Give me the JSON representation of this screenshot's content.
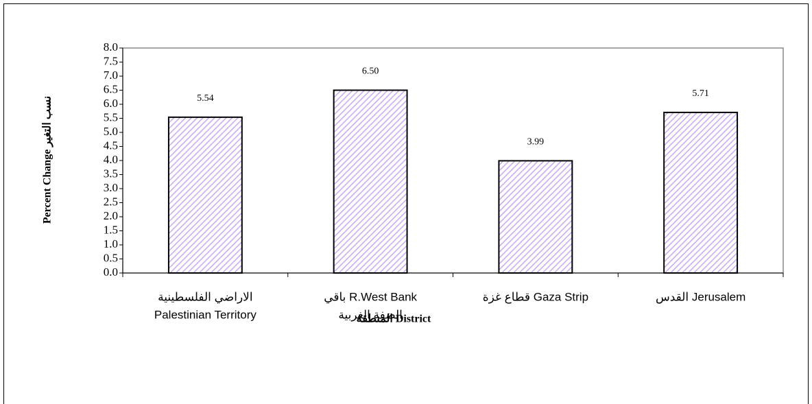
{
  "chart_data": {
    "type": "bar",
    "categories": [
      [
        "الاراضي الفلسطينية",
        "Palestinian Territory"
      ],
      [
        "باقي R.West Bank",
        "الضفة الغربية"
      ],
      [
        "قطاع غزة Gaza Strip"
      ],
      [
        "القدس Jerusalem"
      ]
    ],
    "values": [
      5.54,
      6.5,
      3.99,
      5.71
    ],
    "value_labels": [
      "5.54",
      "6.50",
      "3.99",
      "5.71"
    ],
    "color": "#c8a8f0",
    "x_label": "المنطقة District",
    "y_label": "Percent Change نسب التغير",
    "ylim": [
      0,
      8
    ],
    "yticks": [
      {
        "value": 0,
        "label": "0.0"
      },
      {
        "value": 0.5,
        "label": "0.5"
      },
      {
        "value": 1,
        "label": "1.0"
      },
      {
        "value": 1.5,
        "label": "1.5"
      },
      {
        "value": 2,
        "label": "2.0"
      },
      {
        "value": 2.5,
        "label": "2.5"
      },
      {
        "value": 3,
        "label": "3.0"
      },
      {
        "value": 3.5,
        "label": "3.5"
      },
      {
        "value": 4,
        "label": "4.0"
      },
      {
        "value": 4.5,
        "label": "4.5"
      },
      {
        "value": 5,
        "label": "5.0"
      },
      {
        "value": 5.5,
        "label": "5.5"
      },
      {
        "value": 6,
        "label": "6.0"
      },
      {
        "value": 6.5,
        "label": "6.5"
      },
      {
        "value": 7,
        "label": "7.0"
      },
      {
        "value": 7.5,
        "label": "7.5"
      },
      {
        "value": 8,
        "label": "8.0"
      }
    ],
    "grid": false
  }
}
